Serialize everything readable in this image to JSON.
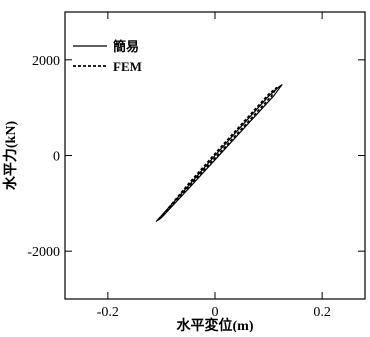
{
  "chart_data": {
    "type": "line",
    "title": "",
    "xlabel": "水平変位(m)",
    "ylabel": "水平力(kN)",
    "xlim": [
      -0.28,
      0.28
    ],
    "ylim": [
      -3000,
      3000
    ],
    "xticks": [
      -0.2,
      0,
      0.2
    ],
    "xtick_labels": [
      "-0.2",
      "0",
      "0.2"
    ],
    "yticks": [
      -2000,
      0,
      2000
    ],
    "ytick_labels": [
      "-2000",
      "0",
      "2000"
    ],
    "grid": false,
    "legend_position": "top-left",
    "series": [
      {
        "name": "簡易",
        "style": "solid",
        "color": "#000000",
        "x": [
          -0.11,
          -0.05,
          0.0,
          0.05,
          0.1,
          0.12,
          0.125,
          0.11,
          0.05,
          0.0,
          -0.05,
          -0.1,
          -0.11
        ],
        "y": [
          -1380,
          -640,
          0,
          620,
          1240,
          1440,
          1480,
          1250,
          520,
          -90,
          -700,
          -1300,
          -1380
        ]
      },
      {
        "name": "FEM",
        "style": "dashed",
        "color": "#000000",
        "x": [
          -0.105,
          -0.05,
          0.0,
          0.05,
          0.1,
          0.115,
          0.105,
          0.05,
          0.0,
          -0.05,
          -0.105
        ],
        "y": [
          -1340,
          -600,
          40,
          660,
          1280,
          1420,
          1240,
          560,
          -50,
          -660,
          -1340
        ]
      }
    ]
  }
}
